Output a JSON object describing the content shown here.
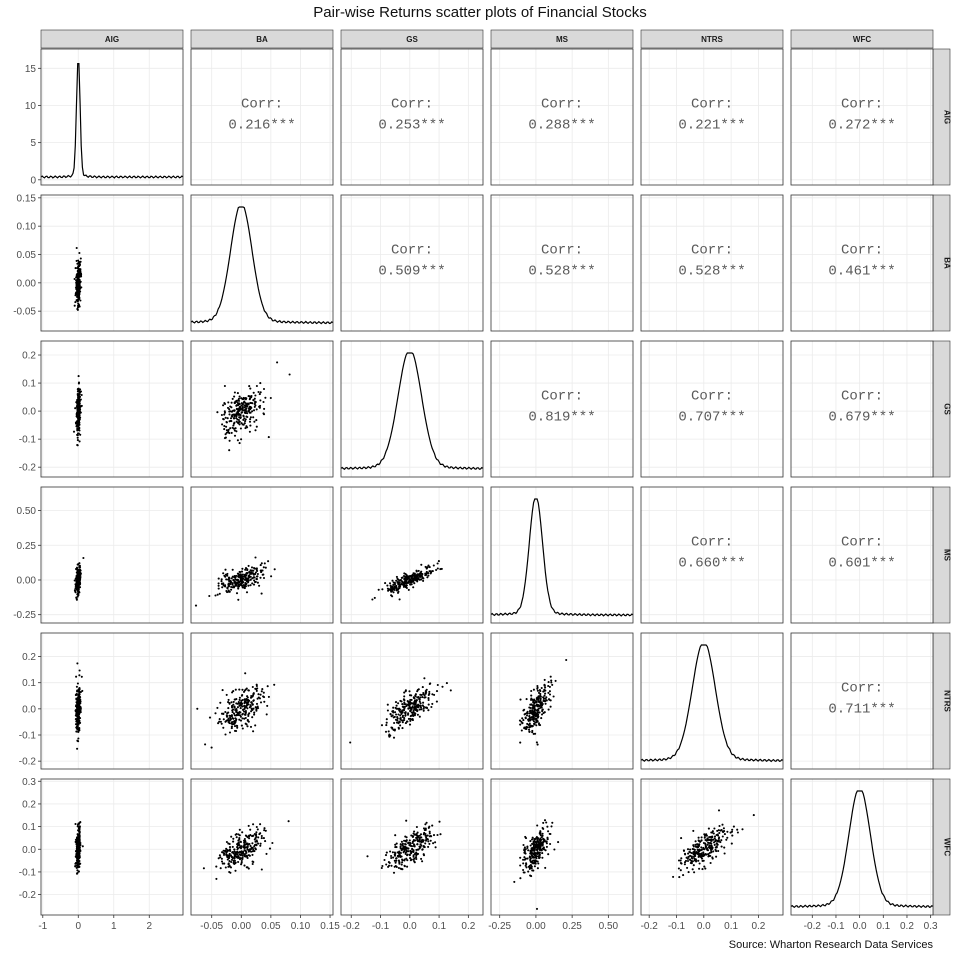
{
  "title": "Pair-wise Returns scatter plots of Financial Stocks",
  "caption": "Source: Wharton Research Data Services",
  "chart_data": {
    "type": "scatter",
    "layout": "pairs-matrix",
    "variables": [
      "AIG",
      "BA",
      "GS",
      "MS",
      "NTRS",
      "WFC"
    ],
    "axis_limits": {
      "AIG": [
        -1.05,
        2.95
      ],
      "BA": [
        -0.085,
        0.155
      ],
      "GS": [
        -0.235,
        0.25
      ],
      "MS": [
        -0.31,
        0.67
      ],
      "NTRS": [
        -0.23,
        0.29
      ],
      "WFC": [
        -0.29,
        0.31
      ]
    },
    "x_ticks": {
      "AIG": {
        "values": [
          -1,
          0,
          1,
          2
        ],
        "labels": [
          "-1",
          "0",
          "1",
          "2"
        ]
      },
      "BA": {
        "values": [
          -0.05,
          0,
          0.05,
          0.1,
          0.15
        ],
        "labels": [
          "-0.05",
          "0.00",
          "0.05",
          "0.10",
          "0.15"
        ]
      },
      "GS": {
        "values": [
          -0.2,
          -0.1,
          0,
          0.1,
          0.2
        ],
        "labels": [
          "-0.2",
          "-0.1",
          "0.0",
          "0.1",
          "0.2"
        ]
      },
      "MS": {
        "values": [
          -0.25,
          0,
          0.25,
          0.5
        ],
        "labels": [
          "-0.25",
          "0.00",
          "0.25",
          "0.50"
        ]
      },
      "NTRS": {
        "values": [
          -0.2,
          -0.1,
          0,
          0.1,
          0.2
        ],
        "labels": [
          "-0.2",
          "-0.1",
          "0.0",
          "0.1",
          "0.2"
        ]
      },
      "WFC": {
        "values": [
          -0.2,
          -0.1,
          0,
          0.1,
          0.2,
          0.3
        ],
        "labels": [
          "-0.2",
          "-0.1",
          "0.0",
          "0.1",
          "0.2",
          "0.3"
        ]
      }
    },
    "y_ticks": {
      "AIG": {
        "values": [
          0,
          5,
          10,
          15
        ],
        "labels": [
          "0",
          "5",
          "10",
          "15"
        ],
        "range": [
          -0.7,
          17.6
        ]
      },
      "BA": {
        "values": [
          -0.05,
          0,
          0.05,
          0.1,
          0.15
        ],
        "labels": [
          "-0.05",
          "0.00",
          "0.05",
          "0.10",
          "0.15"
        ]
      },
      "GS": {
        "values": [
          -0.2,
          -0.1,
          0,
          0.1,
          0.2
        ],
        "labels": [
          "-0.2",
          "-0.1",
          "0.0",
          "0.1",
          "0.2"
        ]
      },
      "MS": {
        "values": [
          -0.25,
          0,
          0.25,
          0.5
        ],
        "labels": [
          "-0.25",
          "0.00",
          "0.25",
          "0.50"
        ]
      },
      "NTRS": {
        "values": [
          -0.2,
          -0.1,
          0,
          0.1,
          0.2
        ],
        "labels": [
          "-0.2",
          "-0.1",
          "0.0",
          "0.1",
          "0.2"
        ]
      },
      "WFC": {
        "values": [
          -0.2,
          -0.1,
          0,
          0.1,
          0.2,
          0.3
        ],
        "labels": [
          "-0.2",
          "-0.1",
          "0.0",
          "0.1",
          "0.2",
          "0.3"
        ]
      }
    },
    "correlations": [
      {
        "row": "AIG",
        "col": "BA",
        "label": "Corr:",
        "value": "0.216***"
      },
      {
        "row": "AIG",
        "col": "GS",
        "label": "Corr:",
        "value": "0.253***"
      },
      {
        "row": "AIG",
        "col": "MS",
        "label": "Corr:",
        "value": "0.288***"
      },
      {
        "row": "AIG",
        "col": "NTRS",
        "label": "Corr:",
        "value": "0.221***"
      },
      {
        "row": "AIG",
        "col": "WFC",
        "label": "Corr:",
        "value": "0.272***"
      },
      {
        "row": "BA",
        "col": "GS",
        "label": "Corr:",
        "value": "0.509***"
      },
      {
        "row": "BA",
        "col": "MS",
        "label": "Corr:",
        "value": "0.528***"
      },
      {
        "row": "BA",
        "col": "NTRS",
        "label": "Corr:",
        "value": "0.528***"
      },
      {
        "row": "BA",
        "col": "WFC",
        "label": "Corr:",
        "value": "0.461***"
      },
      {
        "row": "GS",
        "col": "MS",
        "label": "Corr:",
        "value": "0.819***"
      },
      {
        "row": "GS",
        "col": "NTRS",
        "label": "Corr:",
        "value": "0.707***"
      },
      {
        "row": "GS",
        "col": "WFC",
        "label": "Corr:",
        "value": "0.679***"
      },
      {
        "row": "MS",
        "col": "NTRS",
        "label": "Corr:",
        "value": "0.660***"
      },
      {
        "row": "MS",
        "col": "WFC",
        "label": "Corr:",
        "value": "0.601***"
      },
      {
        "row": "NTRS",
        "col": "WFC",
        "label": "Corr:",
        "value": "0.711***"
      }
    ],
    "diagonal": "density",
    "grid": true,
    "colors": {
      "points": "#000000",
      "strip": "#d9d9d9",
      "strip_border": "#333333",
      "panel_border": "#333333",
      "grid": "#ebebeb",
      "correlation_text": "#5a5a5a"
    }
  }
}
